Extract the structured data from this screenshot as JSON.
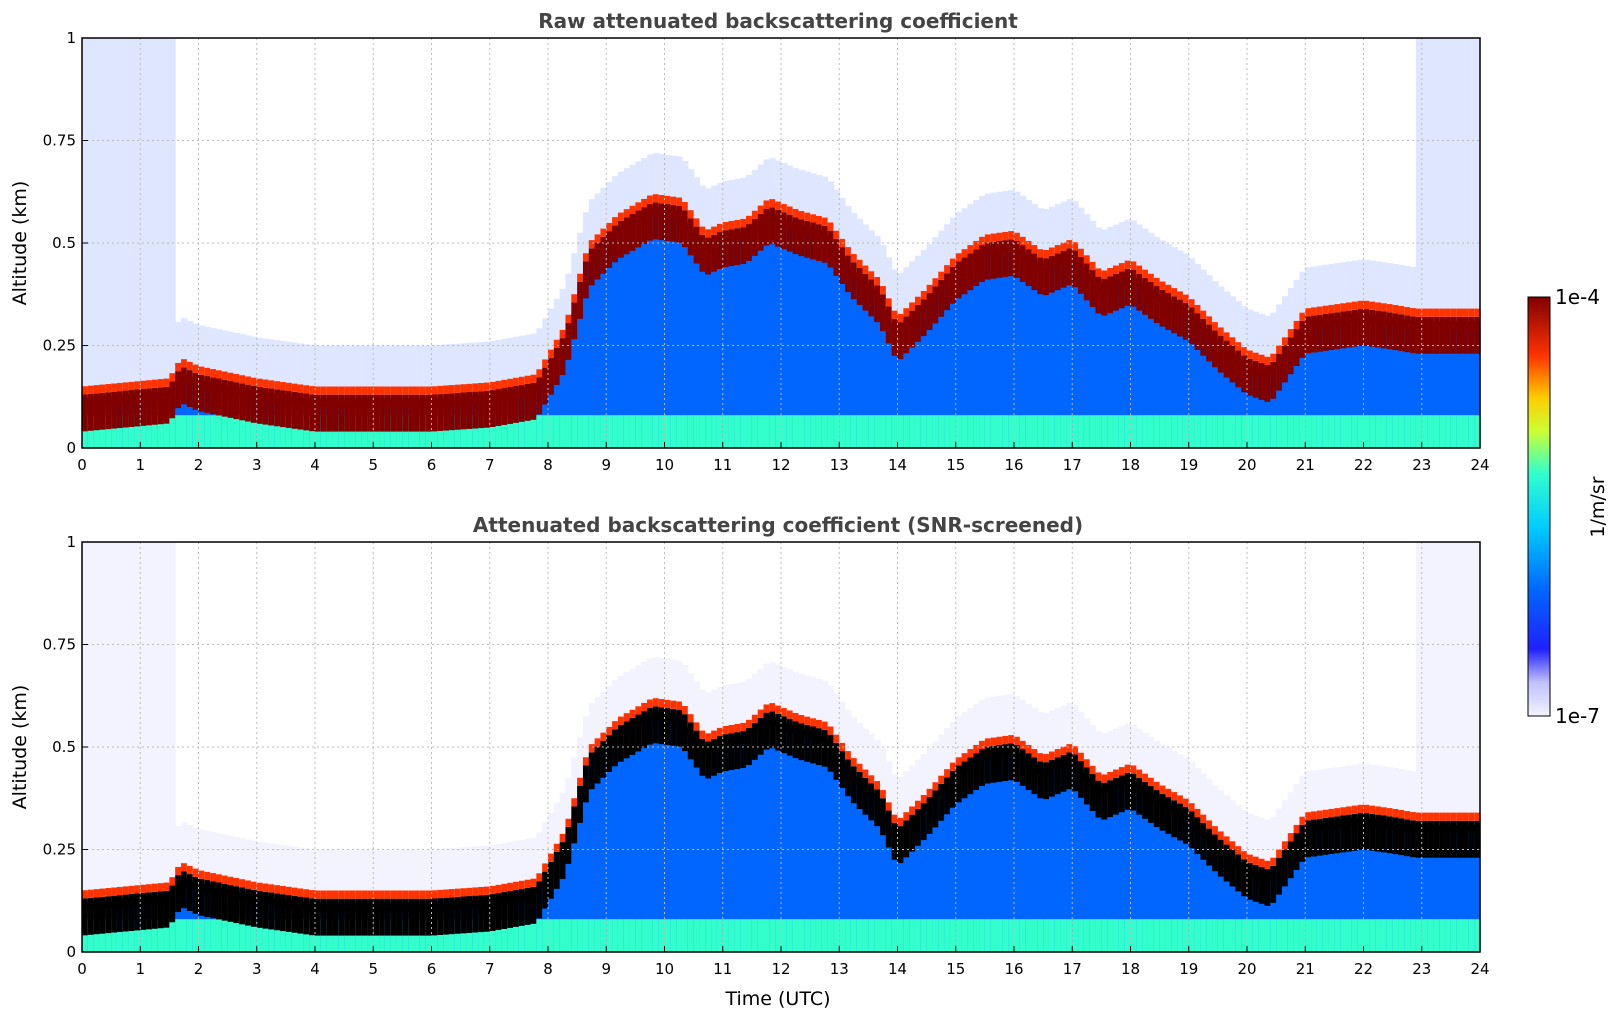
{
  "chart_data": [
    {
      "type": "heatmap",
      "title": "Raw attenuated backscattering coefficient",
      "xlabel": "",
      "ylabel": "Altitude (km)",
      "xlim": [
        0,
        24
      ],
      "ylim": [
        0,
        1
      ],
      "x_ticks": [
        "0",
        "1",
        "2",
        "3",
        "4",
        "5",
        "6",
        "7",
        "8",
        "9",
        "10",
        "11",
        "12",
        "13",
        "14",
        "15",
        "16",
        "17",
        "18",
        "19",
        "20",
        "21",
        "22",
        "23",
        "24"
      ],
      "y_ticks": [
        "0",
        "0.25",
        "0.5",
        "0.75",
        "1"
      ],
      "grid": true,
      "screened": false,
      "layer_top_km": {
        "time_utc": [
          0,
          1.5,
          1.7,
          2.0,
          3.0,
          4.0,
          5.0,
          6.0,
          7.0,
          7.8,
          8.3,
          8.7,
          9.2,
          9.8,
          10.3,
          10.7,
          11.0,
          11.4,
          11.8,
          12.3,
          12.8,
          13.2,
          13.7,
          14.0,
          14.5,
          15.0,
          15.5,
          16.0,
          16.5,
          17.0,
          17.5,
          18.0,
          18.5,
          19.0,
          19.5,
          20.0,
          20.4,
          21.0,
          21.5,
          22.0,
          22.5,
          22.9
        ],
        "altitude_km": [
          0.1,
          0.12,
          0.17,
          0.15,
          0.12,
          0.1,
          0.1,
          0.1,
          0.11,
          0.13,
          0.25,
          0.45,
          0.52,
          0.57,
          0.56,
          0.48,
          0.5,
          0.51,
          0.56,
          0.53,
          0.51,
          0.43,
          0.36,
          0.27,
          0.34,
          0.42,
          0.47,
          0.48,
          0.43,
          0.46,
          0.38,
          0.41,
          0.36,
          0.32,
          0.25,
          0.19,
          0.17,
          0.29,
          0.3,
          0.31,
          0.3,
          0.29
        ]
      }
    },
    {
      "type": "heatmap",
      "title": "Attenuated backscattering coefficient (SNR-screened)",
      "xlabel": "Time (UTC)",
      "ylabel": "Altitude (km)",
      "xlim": [
        0,
        24
      ],
      "ylim": [
        0,
        1
      ],
      "x_ticks": [
        "0",
        "1",
        "2",
        "3",
        "4",
        "5",
        "6",
        "7",
        "8",
        "9",
        "10",
        "11",
        "12",
        "13",
        "14",
        "15",
        "16",
        "17",
        "18",
        "19",
        "20",
        "21",
        "22",
        "23",
        "24"
      ],
      "y_ticks": [
        "0",
        "0.25",
        "0.5",
        "0.75",
        "1"
      ],
      "grid": true,
      "screened": true,
      "layer_top_km": {
        "time_utc": [
          0,
          1.5,
          1.7,
          2.0,
          3.0,
          4.0,
          5.0,
          6.0,
          7.0,
          7.8,
          8.3,
          8.7,
          9.2,
          9.8,
          10.3,
          10.7,
          11.0,
          11.4,
          11.8,
          12.3,
          12.8,
          13.2,
          13.7,
          14.0,
          14.5,
          15.0,
          15.5,
          16.0,
          16.5,
          17.0,
          17.5,
          18.0,
          18.5,
          19.0,
          19.5,
          20.0,
          20.4,
          21.0,
          21.5,
          22.0,
          22.5,
          22.9
        ],
        "altitude_km": [
          0.1,
          0.12,
          0.17,
          0.15,
          0.12,
          0.1,
          0.1,
          0.1,
          0.11,
          0.13,
          0.25,
          0.45,
          0.52,
          0.57,
          0.56,
          0.48,
          0.5,
          0.51,
          0.56,
          0.53,
          0.51,
          0.43,
          0.36,
          0.27,
          0.34,
          0.42,
          0.47,
          0.48,
          0.43,
          0.46,
          0.38,
          0.41,
          0.36,
          0.32,
          0.25,
          0.19,
          0.17,
          0.29,
          0.3,
          0.31,
          0.3,
          0.29
        ]
      }
    }
  ],
  "colorbar": {
    "label": "1/m/sr",
    "max_label": "1e-4",
    "min_label": "1e-7",
    "scale": "log",
    "colormap": "jet"
  }
}
